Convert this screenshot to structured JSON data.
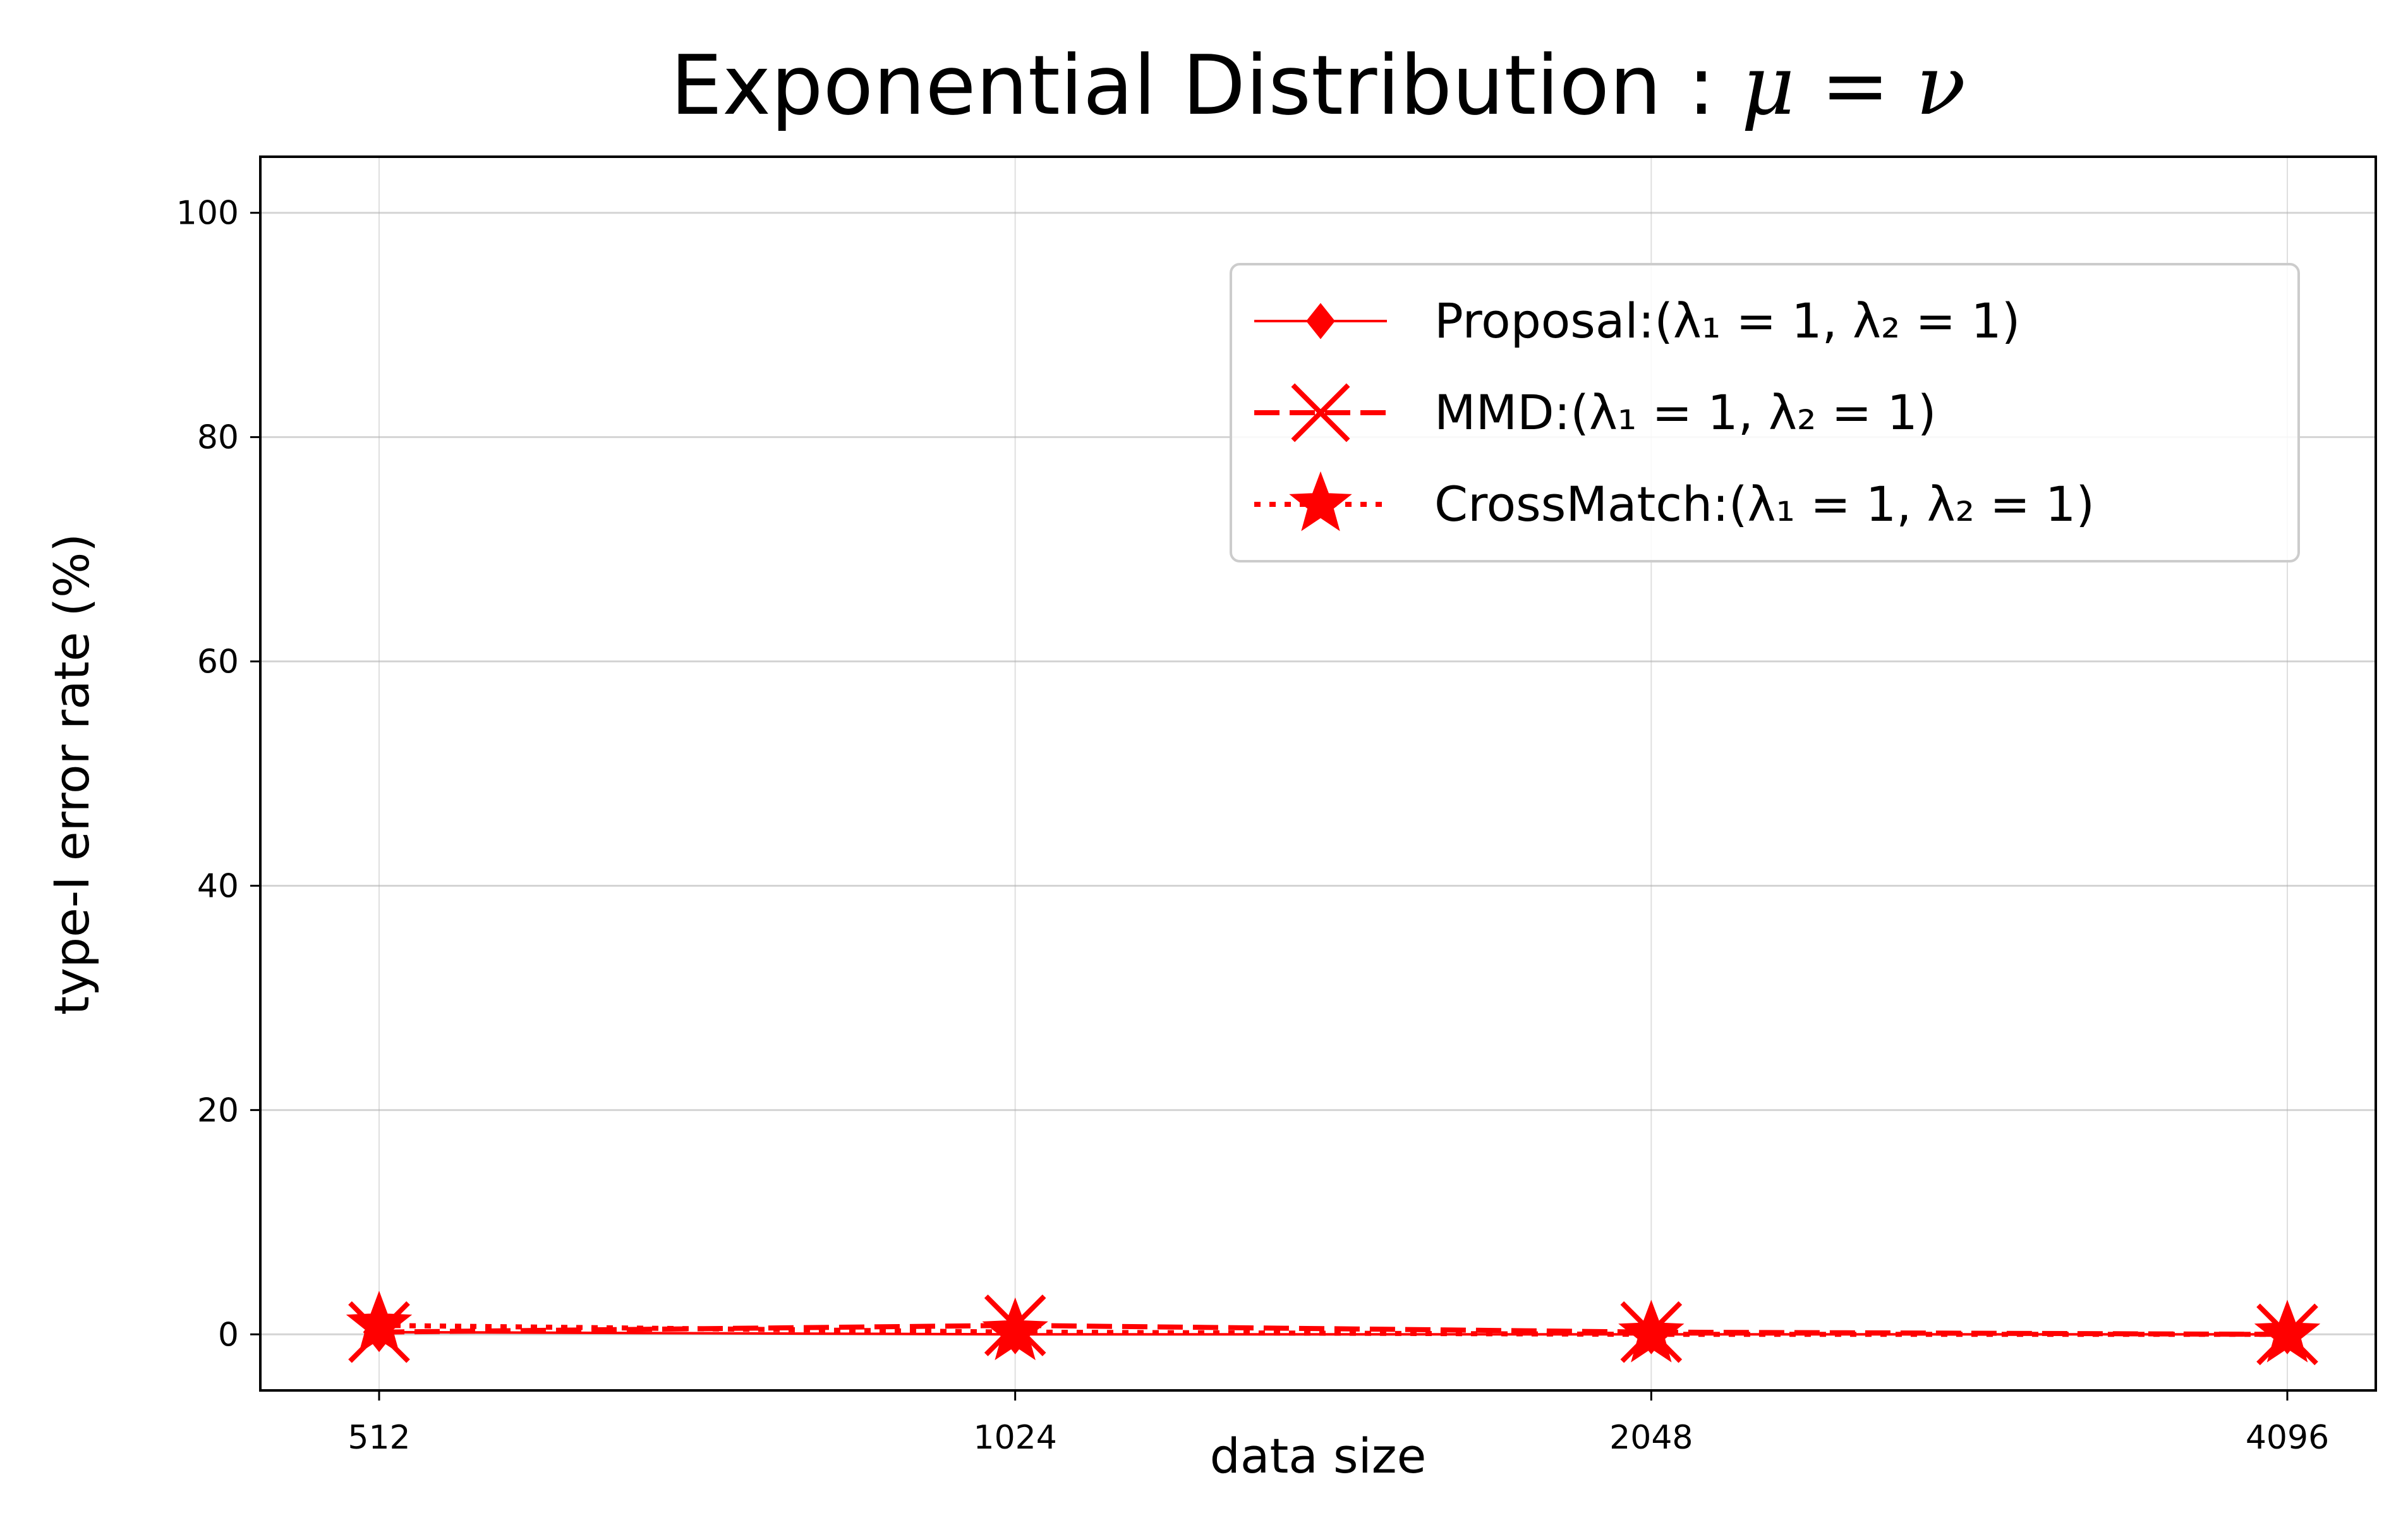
{
  "chart_data": {
    "type": "line",
    "title": {
      "text": "Exponential Distribution : ",
      "math": "μ = ν"
    },
    "xlabel": "data size",
    "ylabel": "type-I error rate (%)",
    "x_scale": "log2",
    "x": [
      512,
      1024,
      2048,
      4096
    ],
    "x_tick_labels": [
      "512",
      "1024",
      "2048",
      "4096"
    ],
    "ylim": [
      -5,
      105
    ],
    "y_ticks": [
      0,
      20,
      40,
      60,
      80,
      100
    ],
    "y_tick_labels": [
      "0",
      "20",
      "40",
      "60",
      "80",
      "100"
    ],
    "grid": true,
    "legend_position": "upper right",
    "series": [
      {
        "name": "Proposal:(λ₁ = 1, λ₂ = 1)",
        "legend_prefix": "Proposal:",
        "values": [
          0.2,
          0.0,
          0.0,
          0.0
        ],
        "color": "#ff0000",
        "linestyle": "solid",
        "marker": "diamond"
      },
      {
        "name": "MMD:(λ₁ = 1, λ₂ = 1)",
        "legend_prefix": "MMD:",
        "values": [
          0.2,
          0.8,
          0.2,
          0.0
        ],
        "color": "#ff0000",
        "linestyle": "dashed",
        "marker": "x"
      },
      {
        "name": "CrossMatch:(λ₁ = 1, λ₂ = 1)",
        "legend_prefix": "CrossMatch:",
        "values": [
          0.8,
          0.2,
          0.0,
          0.0
        ],
        "color": "#ff0000",
        "linestyle": "dotted",
        "marker": "star"
      }
    ]
  }
}
